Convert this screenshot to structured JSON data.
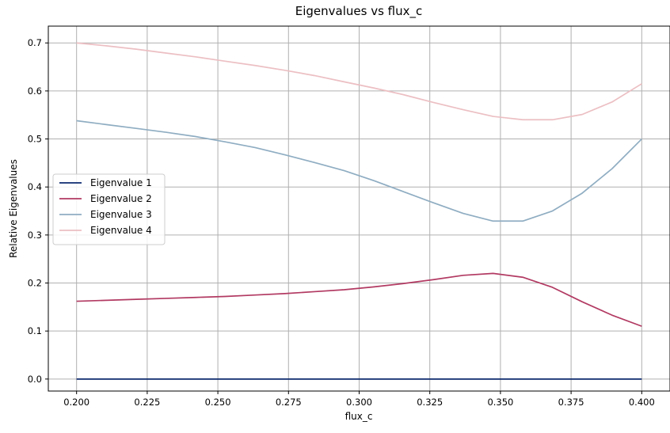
{
  "chart_data": {
    "type": "line",
    "title": "Eigenvalues vs flux_c",
    "xlabel": "flux_c",
    "ylabel": "Relative Eigenvalues",
    "xlim": [
      0.19,
      0.41
    ],
    "ylim": [
      -0.025,
      0.735
    ],
    "grid": true,
    "legend_position": "center-left",
    "x_ticks": [
      0.2,
      0.225,
      0.25,
      0.275,
      0.3,
      0.325,
      0.35,
      0.375,
      0.4
    ],
    "x_tick_labels": [
      "0.200",
      "0.225",
      "0.250",
      "0.275",
      "0.300",
      "0.325",
      "0.350",
      "0.375",
      "0.400"
    ],
    "y_ticks": [
      0.0,
      0.1,
      0.2,
      0.3,
      0.4,
      0.5,
      0.6,
      0.7
    ],
    "y_tick_labels": [
      "0.0",
      "0.1",
      "0.2",
      "0.3",
      "0.4",
      "0.5",
      "0.6",
      "0.7"
    ],
    "x": [
      0.2,
      0.2105,
      0.2211,
      0.2316,
      0.2421,
      0.2526,
      0.2632,
      0.2737,
      0.2842,
      0.2947,
      0.3053,
      0.3158,
      0.3263,
      0.3368,
      0.3474,
      0.3579,
      0.3684,
      0.3789,
      0.3895,
      0.4
    ],
    "series": [
      {
        "name": "Eigenvalue 1",
        "color": "#0d2a6e",
        "values": [
          0.0,
          0.0,
          0.0,
          0.0,
          0.0,
          0.0,
          0.0,
          0.0,
          0.0,
          0.0,
          0.0,
          0.0,
          0.0,
          0.0,
          0.0,
          0.0,
          0.0,
          0.0,
          0.0,
          0.0
        ]
      },
      {
        "name": "Eigenvalue 2",
        "color": "#b23a62",
        "values": [
          0.162,
          0.164,
          0.166,
          0.168,
          0.17,
          0.172,
          0.175,
          0.178,
          0.182,
          0.186,
          0.192,
          0.199,
          0.207,
          0.216,
          0.22,
          0.212,
          0.191,
          0.161,
          0.133,
          0.11
        ]
      },
      {
        "name": "Eigenvalue 3",
        "color": "#8fadc2",
        "values": [
          0.538,
          0.53,
          0.522,
          0.514,
          0.505,
          0.494,
          0.482,
          0.467,
          0.451,
          0.434,
          0.413,
          0.39,
          0.367,
          0.345,
          0.329,
          0.329,
          0.35,
          0.387,
          0.438,
          0.5
        ]
      },
      {
        "name": "Eigenvalue 4",
        "color": "#ecbfc3",
        "values": [
          0.7,
          0.694,
          0.687,
          0.679,
          0.671,
          0.662,
          0.653,
          0.643,
          0.632,
          0.619,
          0.606,
          0.592,
          0.576,
          0.561,
          0.547,
          0.54,
          0.54,
          0.551,
          0.577,
          0.615
        ]
      }
    ]
  }
}
